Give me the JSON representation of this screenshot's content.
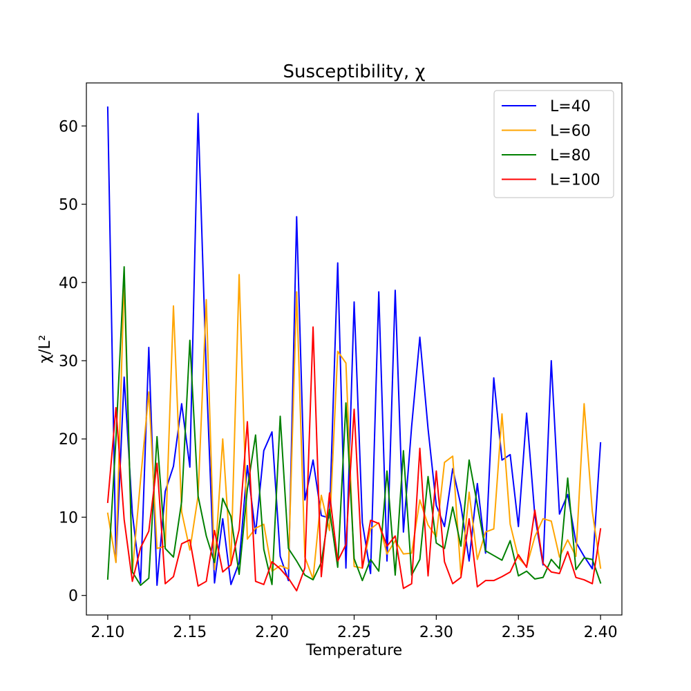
{
  "chart_data": {
    "type": "line",
    "title": "Susceptibility, χ",
    "xlabel": "Temperature",
    "ylabel": "χ/L²",
    "xlim": [
      2.087,
      2.413
    ],
    "ylim": [
      -2.5,
      65.5
    ],
    "x": [
      2.1,
      2.105,
      2.11,
      2.115,
      2.12,
      2.125,
      2.13,
      2.135,
      2.14,
      2.145,
      2.15,
      2.155,
      2.16,
      2.165,
      2.17,
      2.175,
      2.18,
      2.185,
      2.19,
      2.195,
      2.2,
      2.205,
      2.21,
      2.215,
      2.22,
      2.225,
      2.23,
      2.235,
      2.24,
      2.245,
      2.25,
      2.255,
      2.26,
      2.265,
      2.27,
      2.275,
      2.28,
      2.285,
      2.29,
      2.295,
      2.3,
      2.305,
      2.31,
      2.315,
      2.32,
      2.325,
      2.33,
      2.335,
      2.34,
      2.345,
      2.35,
      2.355,
      2.36,
      2.365,
      2.37,
      2.375,
      2.38,
      2.385,
      2.39,
      2.395,
      2.4
    ],
    "x_ticks": [
      "2.10",
      "2.15",
      "2.20",
      "2.25",
      "2.30",
      "2.35",
      "2.40"
    ],
    "x_tick_values": [
      2.1,
      2.15,
      2.2,
      2.25,
      2.3,
      2.35,
      2.4
    ],
    "y_ticks": [
      "0",
      "10",
      "20",
      "30",
      "40",
      "50",
      "60"
    ],
    "y_tick_values": [
      0,
      10,
      20,
      30,
      40,
      50,
      60
    ],
    "grid": false,
    "legend_position": "top-right",
    "series": [
      {
        "name": "L=40",
        "color": "#0000ff",
        "values": [
          62.4,
          4.3,
          27.9,
          10.5,
          1.6,
          31.7,
          1.3,
          13.3,
          16.5,
          24.5,
          16.4,
          61.6,
          28.4,
          1.6,
          9.8,
          1.4,
          4.2,
          16.6,
          7.9,
          18.5,
          20.9,
          5.0,
          1.9,
          48.4,
          12.2,
          17.3,
          10.2,
          9.9,
          42.5,
          3.5,
          37.5,
          9.3,
          2.8,
          38.8,
          4.4,
          39.0,
          8.1,
          21.6,
          33.0,
          21.3,
          11.5,
          8.8,
          16.2,
          11.5,
          4.4,
          14.3,
          5.4,
          27.8,
          17.3,
          18.0,
          8.8,
          23.3,
          10.2,
          3.9,
          30.0,
          10.4,
          12.9,
          6.8,
          5.0,
          3.4,
          19.5
        ]
      },
      {
        "name": "L=60",
        "color": "#ffa500",
        "values": [
          10.5,
          4.2,
          40.5,
          3.0,
          14.8,
          26.0,
          6.0,
          6.3,
          37.0,
          10.7,
          5.8,
          12.7,
          37.8,
          3.3,
          20.0,
          4.0,
          41.0,
          7.2,
          8.6,
          9.1,
          3.1,
          3.8,
          3.4,
          38.8,
          4.9,
          2.1,
          12.8,
          8.3,
          31.2,
          29.7,
          3.7,
          3.5,
          8.5,
          9.3,
          5.3,
          7.0,
          5.3,
          5.4,
          12.2,
          9.0,
          7.5,
          17.0,
          17.8,
          2.6,
          13.2,
          4.6,
          8.1,
          8.5,
          23.2,
          9.1,
          4.8,
          3.7,
          7.5,
          9.8,
          9.5,
          4.9,
          7.1,
          5.0,
          24.5,
          10.7,
          3.5
        ]
      },
      {
        "name": "L=80",
        "color": "#008000",
        "values": [
          2.1,
          20.0,
          42.0,
          3.0,
          1.3,
          2.2,
          20.3,
          6.0,
          4.9,
          12.0,
          32.6,
          12.7,
          7.6,
          4.2,
          12.4,
          10.1,
          2.7,
          13.6,
          20.5,
          5.9,
          1.4,
          22.9,
          6.0,
          4.4,
          2.6,
          2.0,
          4.2,
          11.0,
          3.6,
          24.6,
          4.7,
          1.9,
          4.6,
          3.1,
          15.9,
          2.6,
          18.5,
          2.6,
          4.6,
          15.2,
          6.7,
          6.0,
          11.3,
          6.3,
          17.3,
          11.6,
          5.7,
          5.1,
          4.5,
          7.0,
          2.5,
          3.1,
          2.1,
          2.3,
          4.6,
          3.4,
          15.0,
          3.3,
          4.8,
          4.6,
          1.6
        ]
      },
      {
        "name": "L=100",
        "color": "#ff0000",
        "values": [
          11.9,
          24.0,
          9.7,
          1.8,
          6.1,
          8.2,
          16.9,
          1.5,
          2.4,
          6.6,
          7.1,
          1.2,
          1.8,
          8.3,
          3.0,
          3.9,
          8.4,
          22.2,
          1.8,
          1.4,
          4.3,
          3.4,
          2.2,
          0.6,
          3.5,
          34.3,
          2.4,
          13.1,
          4.4,
          6.5,
          23.8,
          3.5,
          9.6,
          9.2,
          6.3,
          7.6,
          0.9,
          1.5,
          18.8,
          2.5,
          15.9,
          4.3,
          1.5,
          2.3,
          9.8,
          1.1,
          1.9,
          1.9,
          2.4,
          3.0,
          5.2,
          3.6,
          10.9,
          4.1,
          3.0,
          2.8,
          5.6,
          2.3,
          2.0,
          1.5,
          8.5
        ]
      }
    ]
  }
}
